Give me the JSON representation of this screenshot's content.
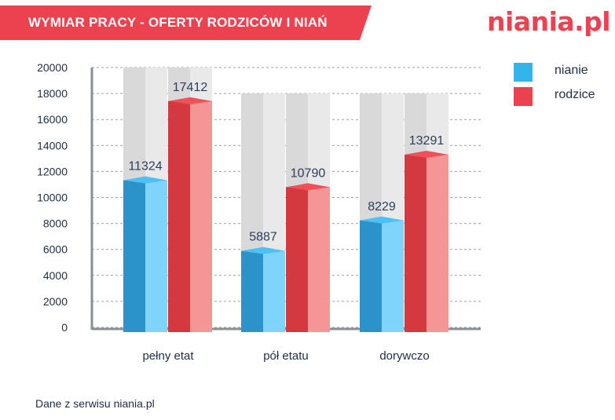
{
  "header": {
    "title": "WYMIAR PRACY - OFERTY RODZICÓW I NIAŃ",
    "banner_color": "#ec4250",
    "logo_text": "niania.pl"
  },
  "footer": {
    "source_text": "Dane z serwisu niania.pl"
  },
  "legend": [
    {
      "label": "nianie",
      "color": "#33b5ec"
    },
    {
      "label": "rodzice",
      "color": "#ec4250"
    }
  ],
  "chart_data": {
    "type": "bar",
    "title": "WYMIAR PRACY - OFERTY RODZICÓW I NIAŃ",
    "xlabel": "",
    "ylabel": "",
    "categories": [
      "pełny etat",
      "pół etatu",
      "dorywczo"
    ],
    "series": [
      {
        "name": "nianie",
        "values": [
          11324,
          5887,
          8229
        ],
        "color": "#33b5ec"
      },
      {
        "name": "rodzice",
        "values": [
          17412,
          10790,
          13291
        ],
        "color": "#ec4250"
      }
    ],
    "ylim": [
      0,
      20000
    ],
    "yticks": [
      0,
      2000,
      4000,
      6000,
      8000,
      10000,
      12000,
      14000,
      16000,
      18000,
      20000
    ],
    "background_columns_top": [
      20000,
      18000,
      18000
    ],
    "grid": true,
    "legend_position": "top-right",
    "data_labels": true
  }
}
